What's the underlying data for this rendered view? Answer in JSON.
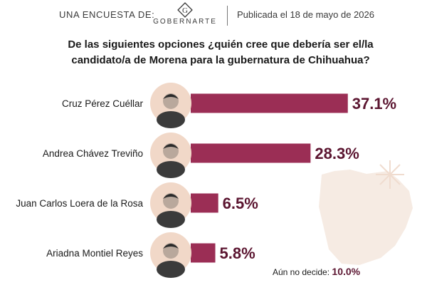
{
  "header": {
    "label": "UNA ENCUESTA DE:",
    "logo_text": "GOBERNARTE",
    "logo_letter": "G",
    "published": "Publicada el 18 de mayo de 2026"
  },
  "question": {
    "line1": "De las siguientes opciones ¿quién cree que debería ser el/la",
    "line2": "candidato/a de Morena para la gubernatura de Chihuahua?"
  },
  "colors": {
    "bar": "#9b2e55",
    "value": "#5b1530",
    "avatar_bg": "#f1d8c8",
    "map": "#f6ebe3"
  },
  "chart_data": {
    "type": "bar",
    "orientation": "horizontal",
    "categories": [
      "Cruz Pérez Cuéllar",
      "Andrea Chávez Treviño",
      "Juan Carlos Loera de la Rosa",
      "Ariadna Montiel Reyes"
    ],
    "values": [
      37.1,
      28.3,
      6.5,
      5.8
    ],
    "value_labels": [
      "37.1%",
      "28.3%",
      "6.5%",
      "5.8%"
    ],
    "unit": "%",
    "title": "",
    "xlabel": "",
    "ylabel": "",
    "xlim": [
      0,
      100
    ]
  },
  "undecided": {
    "label": "Aún no decide:",
    "value": "10.0%"
  }
}
